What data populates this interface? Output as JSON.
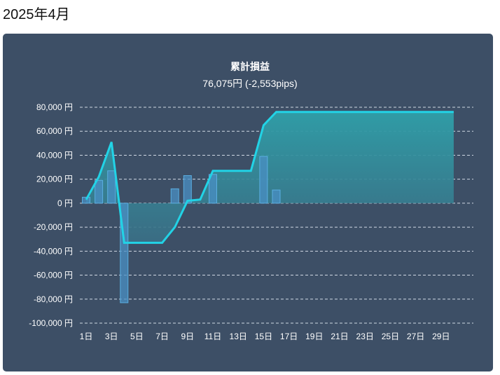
{
  "page": {
    "heading": "2025年4月"
  },
  "chart_data": {
    "type": "bar+area",
    "title": "累計損益",
    "subtitle": "76,075円 (-2,553pips)",
    "ylim": [
      -100000,
      80000
    ],
    "y_ticks": [
      {
        "value": 80000,
        "label": "80,000 円"
      },
      {
        "value": 60000,
        "label": "60,000 円"
      },
      {
        "value": 40000,
        "label": "40,000 円"
      },
      {
        "value": 20000,
        "label": "20,000 円"
      },
      {
        "value": 0,
        "label": "0 円"
      },
      {
        "value": -20000,
        "label": "-20,000 円"
      },
      {
        "value": -40000,
        "label": "-40,000 円"
      },
      {
        "value": -60000,
        "label": "-60,000 円"
      },
      {
        "value": -80000,
        "label": "-80,000 円"
      },
      {
        "value": -100000,
        "label": "-100,000 円"
      }
    ],
    "x_ticks": [
      {
        "day": 1,
        "label": "1日"
      },
      {
        "day": 3,
        "label": "3日"
      },
      {
        "day": 5,
        "label": "5日"
      },
      {
        "day": 7,
        "label": "7日"
      },
      {
        "day": 9,
        "label": "9日"
      },
      {
        "day": 11,
        "label": "11日"
      },
      {
        "day": 13,
        "label": "13日"
      },
      {
        "day": 15,
        "label": "15日"
      },
      {
        "day": 17,
        "label": "17日"
      },
      {
        "day": 19,
        "label": "19日"
      },
      {
        "day": 21,
        "label": "21日"
      },
      {
        "day": 23,
        "label": "23日"
      },
      {
        "day": 25,
        "label": "25日"
      },
      {
        "day": 27,
        "label": "27日"
      },
      {
        "day": 29,
        "label": "29日"
      }
    ],
    "days": [
      1,
      2,
      3,
      4,
      5,
      6,
      7,
      8,
      9,
      10,
      11,
      12,
      13,
      14,
      15,
      16,
      17,
      18,
      19,
      20,
      21,
      22,
      23,
      24,
      25,
      26,
      27,
      28,
      29,
      30
    ],
    "daily_pl": [
      5000,
      19000,
      27000,
      -83000,
      0,
      0,
      0,
      12000,
      23000,
      0,
      24000,
      0,
      0,
      0,
      39000,
      11000,
      0,
      0,
      0,
      0,
      0,
      0,
      0,
      0,
      0,
      0,
      0,
      0,
      0,
      0
    ],
    "cumulative": [
      3000,
      22000,
      51000,
      -33000,
      -33000,
      -33000,
      -33000,
      -20000,
      2000,
      3000,
      27000,
      27000,
      27000,
      27000,
      65000,
      76075,
      76075,
      76075,
      76075,
      76075,
      76075,
      76075,
      76075,
      76075,
      76075,
      76075,
      76075,
      76075,
      76075,
      76075
    ],
    "colors": {
      "panel_bg": "#3d4f66",
      "line": "#22d3e6",
      "area_top": "#2fa0a9",
      "area_bottom": "#3a6f86",
      "bar_fill": "#4a8fc4",
      "bar_stroke": "#5aaee0",
      "grid": "#cfd8e3",
      "text": "#ffffff"
    },
    "grid": true,
    "legend": "none"
  }
}
